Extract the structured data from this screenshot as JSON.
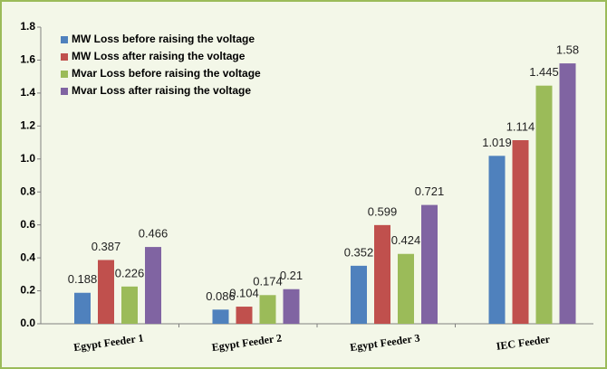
{
  "chart_data": {
    "type": "bar",
    "categories": [
      "Egypt Feeder 1",
      "Egypt Feeder 2",
      "Egypt Feeder 3",
      "IEC Feeder"
    ],
    "series": [
      {
        "name": "MW Loss before raising the voltage",
        "color": "#4f81bd",
        "values": [
          0.188,
          0.086,
          0.352,
          1.019
        ]
      },
      {
        "name": "MW Loss after raising the voltage",
        "color": "#c0504d",
        "values": [
          0.387,
          0.104,
          0.599,
          1.114
        ]
      },
      {
        "name": "Mvar Loss before raising the voltage",
        "color": "#9bbb59",
        "values": [
          0.226,
          0.174,
          0.424,
          1.445
        ]
      },
      {
        "name": "Mvar Loss after raising the voltage",
        "color": "#8064a2",
        "values": [
          0.466,
          0.21,
          0.721,
          1.58
        ]
      }
    ],
    "ylim": [
      0,
      1.8
    ],
    "yticks": [
      {
        "value": 0,
        "label": "0.0"
      },
      0.2,
      0.4,
      0.6,
      0.8,
      {
        "value": 1,
        "label": "1.0"
      },
      1.2,
      1.4,
      1.6,
      1.8
    ],
    "legend": "upper left"
  }
}
